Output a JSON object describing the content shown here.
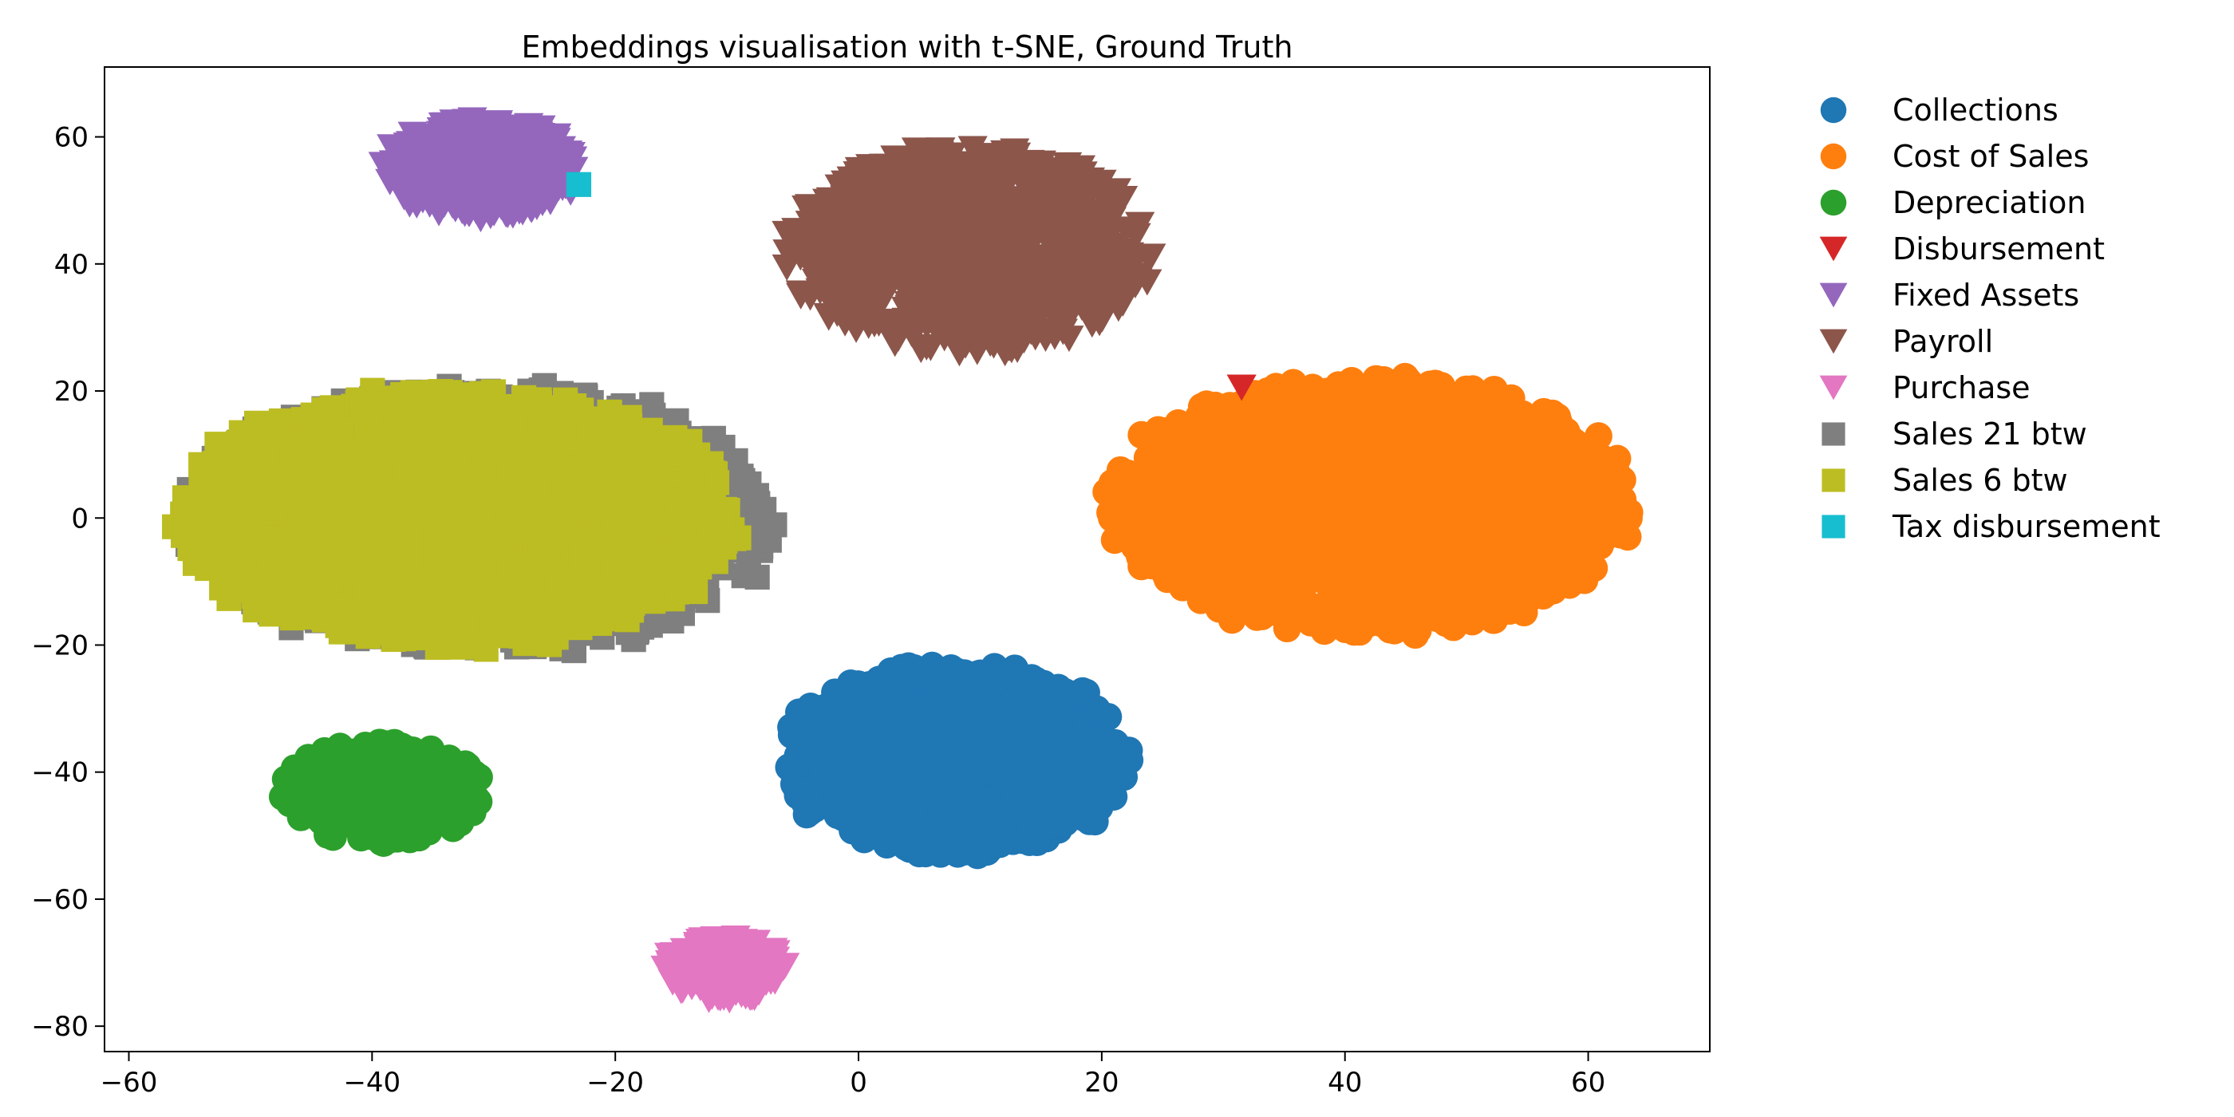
{
  "chart_data": {
    "type": "scatter",
    "title": "Embeddings visualisation with t-SNE, Ground Truth",
    "xlabel": "",
    "ylabel": "",
    "xlim": [
      -62,
      70
    ],
    "ylim": [
      -84,
      71
    ],
    "xticks": [
      -60,
      -40,
      -20,
      0,
      20,
      40,
      60
    ],
    "xtick_labels": [
      "−60",
      "−40",
      "−20",
      "0",
      "20",
      "40",
      "60"
    ],
    "yticks": [
      -80,
      -60,
      -40,
      -20,
      0,
      20,
      40,
      60
    ],
    "ytick_labels": [
      "−80",
      "−60",
      "−40",
      "−20",
      "0",
      "20",
      "40",
      "60"
    ],
    "grid": false,
    "legend_position": "outside-right",
    "series": [
      {
        "name": "Collections",
        "color": "#1f77b4",
        "marker": "circle",
        "center": [
          8,
          -38
        ],
        "spread": [
          14,
          15
        ],
        "points": 1200
      },
      {
        "name": "Cost of Sales",
        "color": "#ff7f0e",
        "marker": "circle",
        "center": [
          42,
          2
        ],
        "spread": [
          21,
          20
        ],
        "points": 1800
      },
      {
        "name": "Depreciation",
        "color": "#2ca02c",
        "marker": "circle",
        "center": [
          -39,
          -43
        ],
        "spread": [
          8,
          8
        ],
        "points": 350
      },
      {
        "name": "Disbursement",
        "color": "#d62728",
        "marker": "triangle-down",
        "points_xy": [
          [
            31.5,
            20.5
          ]
        ]
      },
      {
        "name": "Fixed Assets",
        "color": "#9467bd",
        "marker": "triangle-down",
        "center": [
          -31,
          55
        ],
        "spread": [
          8,
          8
        ],
        "points": 350
      },
      {
        "name": "Payroll",
        "color": "#8c564b",
        "marker": "triangle-down",
        "center": [
          9,
          42
        ],
        "spread": [
          15,
          16
        ],
        "points": 900
      },
      {
        "name": "Purchase",
        "color": "#e377c2",
        "marker": "triangle-down",
        "center": [
          -11,
          -71
        ],
        "spread": [
          5,
          5
        ],
        "points": 180
      },
      {
        "name": "Sales 21 btw",
        "color": "#7f7f7f",
        "marker": "square",
        "center": [
          -31,
          0
        ],
        "spread": [
          24,
          21
        ],
        "points": 1000
      },
      {
        "name": "Sales 6 btw",
        "color": "#bcbd22",
        "marker": "square",
        "center": [
          -33,
          0
        ],
        "spread": [
          23,
          20
        ],
        "points": 1400
      },
      {
        "name": "Tax disbursement",
        "color": "#17becf",
        "marker": "square",
        "points_xy": [
          [
            -23,
            52.5
          ]
        ]
      }
    ]
  }
}
